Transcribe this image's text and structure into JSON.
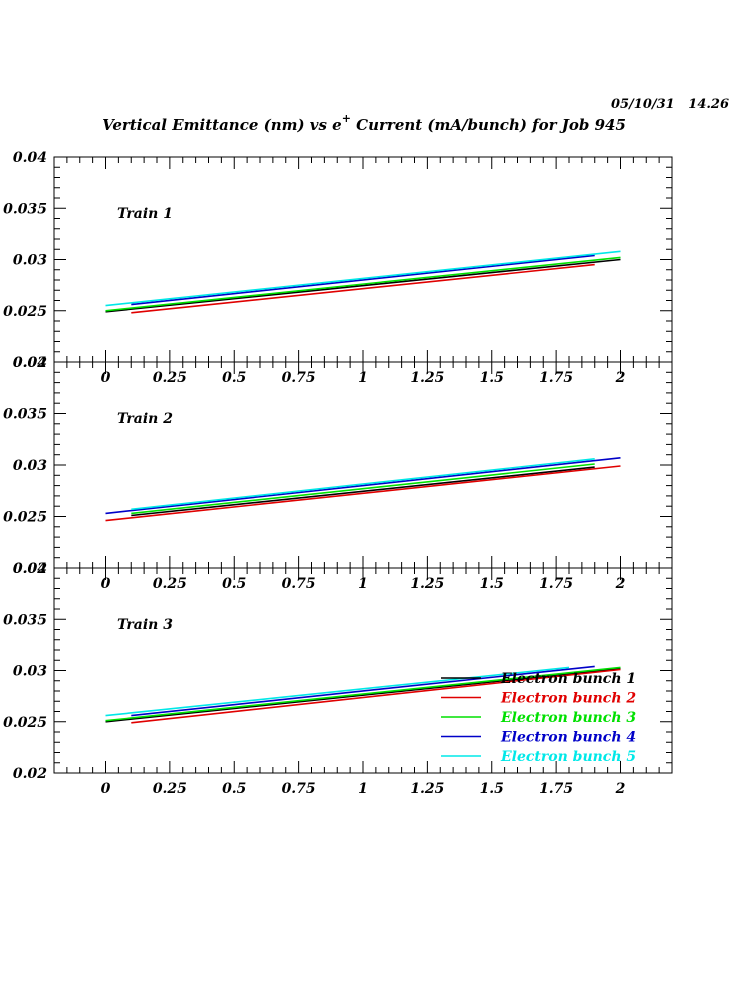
{
  "header": {
    "timestamp": "05/10/31   14.26",
    "title_main": "Vertical Emittance (nm) vs e",
    "title_sup": "+",
    "title_rest": " Current (mA/bunch) for Job 945"
  },
  "colors": {
    "bunch1": "#000000",
    "bunch2": "#e00000",
    "bunch3": "#00e000",
    "bunch4": "#0000c8",
    "bunch5": "#00e8e8"
  },
  "legend": {
    "placement": "bottom-right of Train 3 panel",
    "items": [
      "Electron bunch 1",
      "Electron bunch 2",
      "Electron bunch 3",
      "Electron bunch 4",
      "Electron bunch 5"
    ]
  },
  "chart_data": [
    {
      "type": "line",
      "title": "Train 1",
      "xlim": [
        -0.2,
        2.2
      ],
      "ylim": [
        0.02,
        0.04
      ],
      "xticks": [
        "0",
        "0.25",
        "0.5",
        "0.75",
        "1",
        "1.25",
        "1.5",
        "1.75",
        "2"
      ],
      "yticks": [
        "0.02",
        "0.025",
        "0.03",
        "0.035",
        "0.04"
      ],
      "series": [
        {
          "name": "Electron bunch 1",
          "x": [
            0,
            2
          ],
          "y": [
            0.0249,
            0.03
          ]
        },
        {
          "name": "Electron bunch 2",
          "x": [
            0.1,
            1.9
          ],
          "y": [
            0.0248,
            0.0295
          ]
        },
        {
          "name": "Electron bunch 3",
          "x": [
            0,
            2
          ],
          "y": [
            0.025,
            0.0302
          ]
        },
        {
          "name": "Electron bunch 4",
          "x": [
            0.1,
            1.9
          ],
          "y": [
            0.0256,
            0.0304
          ]
        },
        {
          "name": "Electron bunch 5",
          "x": [
            0,
            2
          ],
          "y": [
            0.0255,
            0.0308
          ]
        }
      ]
    },
    {
      "type": "line",
      "title": "Train 2",
      "xlim": [
        -0.2,
        2.2
      ],
      "ylim": [
        0.02,
        0.04
      ],
      "xticks": [
        "0",
        "0.25",
        "0.5",
        "0.75",
        "1",
        "1.25",
        "1.5",
        "1.75",
        "2"
      ],
      "yticks": [
        "0.02",
        "0.025",
        "0.03",
        "0.035",
        "0.04"
      ],
      "series": [
        {
          "name": "Electron bunch 1",
          "x": [
            0.1,
            1.9
          ],
          "y": [
            0.0251,
            0.0298
          ]
        },
        {
          "name": "Electron bunch 2",
          "x": [
            0,
            2
          ],
          "y": [
            0.0246,
            0.0299
          ]
        },
        {
          "name": "Electron bunch 3",
          "x": [
            0.1,
            1.9
          ],
          "y": [
            0.0253,
            0.0301
          ]
        },
        {
          "name": "Electron bunch 4",
          "x": [
            0,
            2
          ],
          "y": [
            0.0253,
            0.0307
          ]
        },
        {
          "name": "Electron bunch 5",
          "x": [
            0.1,
            1.9
          ],
          "y": [
            0.0257,
            0.0306
          ]
        }
      ]
    },
    {
      "type": "line",
      "title": "Train 3",
      "xlim": [
        -0.2,
        2.2
      ],
      "ylim": [
        0.02,
        0.04
      ],
      "xticks": [
        "0",
        "0.25",
        "0.5",
        "0.75",
        "1",
        "1.25",
        "1.5",
        "1.75",
        "2"
      ],
      "yticks": [
        "0.02",
        "0.025",
        "0.03",
        "0.035",
        "0.04"
      ],
      "series": [
        {
          "name": "Electron bunch 1",
          "x": [
            0,
            2
          ],
          "y": [
            0.025,
            0.0302
          ]
        },
        {
          "name": "Electron bunch 2",
          "x": [
            0.1,
            2
          ],
          "y": [
            0.0249,
            0.0301
          ]
        },
        {
          "name": "Electron bunch 3",
          "x": [
            0,
            2
          ],
          "y": [
            0.0251,
            0.0303
          ]
        },
        {
          "name": "Electron bunch 4",
          "x": [
            0.1,
            1.9
          ],
          "y": [
            0.0256,
            0.0304
          ]
        },
        {
          "name": "Electron bunch 5",
          "x": [
            0,
            1.8
          ],
          "y": [
            0.0256,
            0.0303
          ]
        }
      ]
    }
  ]
}
